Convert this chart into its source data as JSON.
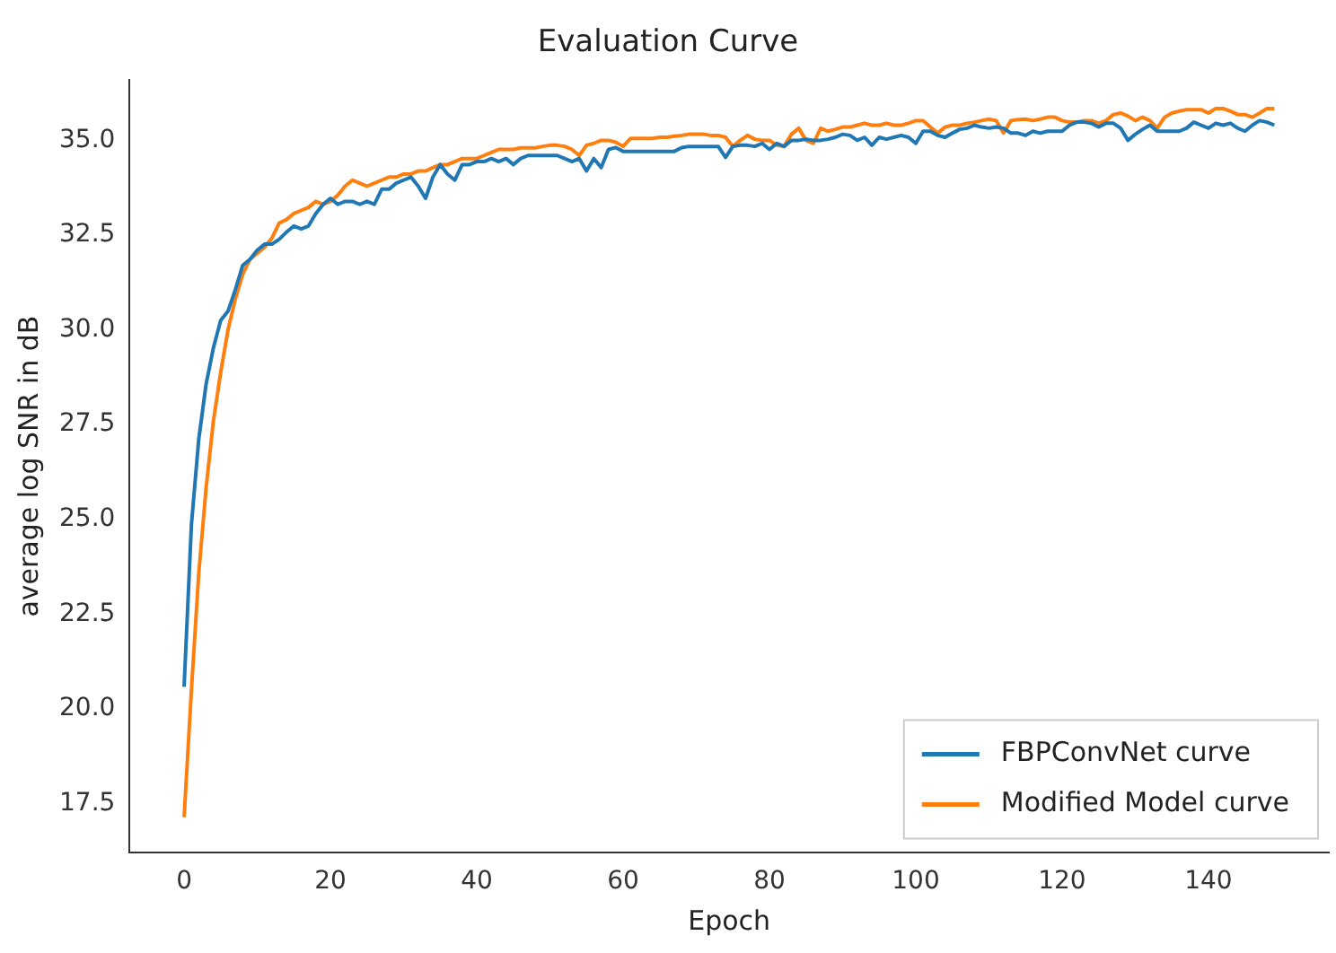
{
  "chart_data": {
    "type": "line",
    "title": "Evaluation Curve",
    "xlabel": "Epoch",
    "ylabel": "average log SNR in dB",
    "x": [
      0,
      1,
      2,
      3,
      4,
      5,
      6,
      7,
      8,
      9,
      10,
      11,
      12,
      13,
      14,
      15,
      16,
      17,
      18,
      19,
      20,
      21,
      22,
      23,
      24,
      25,
      26,
      27,
      28,
      29,
      30,
      31,
      32,
      33,
      34,
      35,
      36,
      37,
      38,
      39,
      40,
      41,
      42,
      43,
      44,
      45,
      46,
      47,
      48,
      49,
      50,
      51,
      52,
      53,
      54,
      55,
      56,
      57,
      58,
      59,
      60,
      61,
      62,
      63,
      64,
      65,
      66,
      67,
      68,
      69,
      70,
      71,
      72,
      73,
      74,
      75,
      76,
      77,
      78,
      79,
      80,
      81,
      82,
      83,
      84,
      85,
      86,
      87,
      88,
      89,
      90,
      91,
      92,
      93,
      94,
      95,
      96,
      97,
      98,
      99,
      100,
      101,
      102,
      103,
      104,
      105,
      106,
      107,
      108,
      109,
      110,
      111,
      112,
      113,
      114,
      115,
      116,
      117,
      118,
      119,
      120,
      121,
      122,
      123,
      124,
      125,
      126,
      127,
      128,
      129,
      130,
      131,
      132,
      133,
      134,
      135,
      136,
      137,
      138,
      139,
      140,
      141,
      142,
      143,
      144,
      145,
      146,
      147,
      148,
      149
    ],
    "series": [
      {
        "name": "FBPConvNet curve",
        "color": "#1f77b4",
        "values": [
          20.58,
          24.86,
          27.11,
          28.56,
          29.52,
          30.25,
          30.49,
          31.06,
          31.7,
          31.86,
          32.1,
          32.26,
          32.26,
          32.39,
          32.58,
          32.74,
          32.66,
          32.74,
          33.07,
          33.31,
          33.47,
          33.31,
          33.39,
          33.39,
          33.31,
          33.39,
          33.31,
          33.71,
          33.71,
          33.87,
          33.95,
          34.03,
          33.79,
          33.47,
          34.03,
          34.36,
          34.11,
          33.95,
          34.36,
          34.36,
          34.44,
          34.44,
          34.52,
          34.44,
          34.52,
          34.36,
          34.52,
          34.6,
          34.6,
          34.6,
          34.6,
          34.6,
          34.52,
          34.44,
          34.52,
          34.19,
          34.52,
          34.28,
          34.76,
          34.81,
          34.71,
          34.71,
          34.71,
          34.71,
          34.71,
          34.71,
          34.71,
          34.71,
          34.81,
          34.84,
          34.84,
          34.84,
          34.84,
          34.84,
          34.55,
          34.84,
          34.87,
          34.87,
          34.84,
          34.92,
          34.76,
          34.92,
          34.84,
          35.0,
          35.0,
          35.03,
          35.0,
          35.0,
          35.03,
          35.08,
          35.16,
          35.13,
          35.0,
          35.08,
          34.87,
          35.08,
          35.03,
          35.08,
          35.13,
          35.08,
          34.92,
          35.24,
          35.24,
          35.13,
          35.08,
          35.19,
          35.29,
          35.32,
          35.4,
          35.35,
          35.32,
          35.35,
          35.32,
          35.19,
          35.19,
          35.13,
          35.24,
          35.19,
          35.24,
          35.24,
          35.24,
          35.4,
          35.48,
          35.48,
          35.45,
          35.35,
          35.45,
          35.45,
          35.32,
          35.0,
          35.16,
          35.29,
          35.4,
          35.24,
          35.24,
          35.24,
          35.24,
          35.32,
          35.48,
          35.4,
          35.32,
          35.45,
          35.4,
          35.45,
          35.32,
          35.24,
          35.4,
          35.52,
          35.48,
          35.4
        ]
      },
      {
        "name": "Modified Model curve",
        "color": "#ff7f0e",
        "values": [
          17.14,
          20.5,
          23.57,
          25.82,
          27.59,
          28.88,
          30.0,
          30.81,
          31.46,
          31.86,
          32.02,
          32.18,
          32.42,
          32.82,
          32.91,
          33.07,
          33.15,
          33.23,
          33.39,
          33.31,
          33.39,
          33.55,
          33.79,
          33.95,
          33.87,
          33.79,
          33.87,
          33.95,
          34.03,
          34.03,
          34.11,
          34.11,
          34.19,
          34.19,
          34.28,
          34.36,
          34.36,
          34.44,
          34.52,
          34.52,
          34.52,
          34.6,
          34.68,
          34.76,
          34.76,
          34.76,
          34.8,
          34.8,
          34.8,
          34.84,
          34.87,
          34.87,
          34.84,
          34.76,
          34.6,
          34.87,
          34.92,
          35.0,
          35.0,
          34.95,
          34.84,
          35.05,
          35.05,
          35.05,
          35.05,
          35.08,
          35.08,
          35.11,
          35.13,
          35.16,
          35.16,
          35.16,
          35.13,
          35.13,
          35.08,
          34.84,
          35.0,
          35.13,
          35.03,
          35.0,
          35.0,
          34.87,
          34.84,
          35.16,
          35.32,
          35.0,
          34.92,
          35.32,
          35.24,
          35.29,
          35.35,
          35.35,
          35.4,
          35.45,
          35.4,
          35.4,
          35.45,
          35.4,
          35.4,
          35.45,
          35.52,
          35.52,
          35.35,
          35.19,
          35.35,
          35.4,
          35.4,
          35.45,
          35.48,
          35.52,
          35.56,
          35.52,
          35.19,
          35.52,
          35.55,
          35.56,
          35.52,
          35.56,
          35.61,
          35.61,
          35.52,
          35.48,
          35.48,
          35.52,
          35.52,
          35.45,
          35.52,
          35.68,
          35.72,
          35.64,
          35.52,
          35.61,
          35.52,
          35.32,
          35.61,
          35.72,
          35.77,
          35.81,
          35.81,
          35.81,
          35.72,
          35.84,
          35.84,
          35.77,
          35.68,
          35.68,
          35.61,
          35.72,
          35.84,
          35.84
        ]
      }
    ],
    "xlim": [
      -7.45,
      156.45
    ],
    "xticks": [
      0,
      20,
      40,
      60,
      80,
      100,
      120,
      140
    ],
    "ylim": [
      16.2,
      36.6
    ],
    "yticks": [
      {
        "value": 17.5,
        "label": "17.5"
      },
      {
        "value": 20,
        "label": "20.0"
      },
      {
        "value": 22.5,
        "label": "22.5"
      },
      {
        "value": 25,
        "label": "25.0"
      },
      {
        "value": 27.5,
        "label": "27.5"
      },
      {
        "value": 30,
        "label": "30.0"
      },
      {
        "value": 32.5,
        "label": "32.5"
      },
      {
        "value": 35,
        "label": "35.0"
      }
    ],
    "grid": false,
    "legend": "bottom right",
    "marker": "none",
    "line_style": "solid"
  }
}
